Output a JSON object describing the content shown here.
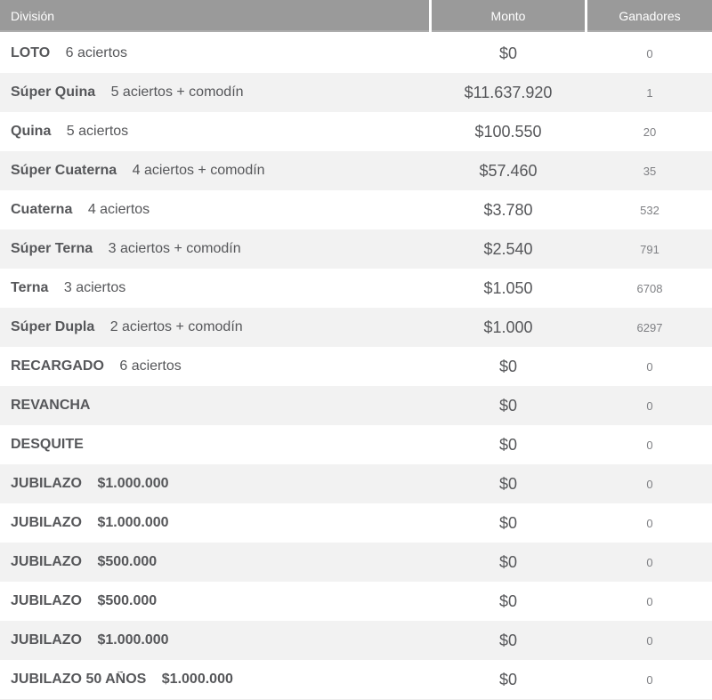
{
  "table": {
    "headers": {
      "division": "División",
      "monto": "Monto",
      "ganadores": "Ganadores"
    },
    "rows": [
      {
        "name": "LOTO",
        "detail": "6 aciertos",
        "detail_bold": false,
        "monto": "$0",
        "ganadores": "0"
      },
      {
        "name": "Súper Quina",
        "detail": "5 aciertos + comodín",
        "detail_bold": false,
        "monto": "$11.637.920",
        "ganadores": "1"
      },
      {
        "name": "Quina",
        "detail": "5 aciertos",
        "detail_bold": false,
        "monto": "$100.550",
        "ganadores": "20"
      },
      {
        "name": "Súper Cuaterna",
        "detail": "4 aciertos + comodín",
        "detail_bold": false,
        "monto": "$57.460",
        "ganadores": "35"
      },
      {
        "name": "Cuaterna",
        "detail": "4 aciertos",
        "detail_bold": false,
        "monto": "$3.780",
        "ganadores": "532"
      },
      {
        "name": "Súper Terna",
        "detail": "3 aciertos + comodín",
        "detail_bold": false,
        "monto": "$2.540",
        "ganadores": "791"
      },
      {
        "name": "Terna",
        "detail": "3 aciertos",
        "detail_bold": false,
        "monto": "$1.050",
        "ganadores": "6708"
      },
      {
        "name": "Súper Dupla",
        "detail": "2 aciertos + comodín",
        "detail_bold": false,
        "monto": "$1.000",
        "ganadores": "6297"
      },
      {
        "name": "RECARGADO",
        "detail": "6 aciertos",
        "detail_bold": false,
        "monto": "$0",
        "ganadores": "0"
      },
      {
        "name": "REVANCHA",
        "detail": "",
        "detail_bold": false,
        "monto": "$0",
        "ganadores": "0"
      },
      {
        "name": "DESQUITE",
        "detail": "",
        "detail_bold": false,
        "monto": "$0",
        "ganadores": "0"
      },
      {
        "name": "JUBILAZO",
        "detail": "$1.000.000",
        "detail_bold": true,
        "monto": "$0",
        "ganadores": "0"
      },
      {
        "name": "JUBILAZO",
        "detail": "$1.000.000",
        "detail_bold": true,
        "monto": "$0",
        "ganadores": "0"
      },
      {
        "name": "JUBILAZO",
        "detail": "$500.000",
        "detail_bold": true,
        "monto": "$0",
        "ganadores": "0"
      },
      {
        "name": "JUBILAZO",
        "detail": "$500.000",
        "detail_bold": true,
        "monto": "$0",
        "ganadores": "0"
      },
      {
        "name": "JUBILAZO",
        "detail": "$1.000.000",
        "detail_bold": true,
        "monto": "$0",
        "ganadores": "0"
      },
      {
        "name": "JUBILAZO 50 AÑOS",
        "detail": "$1.000.000",
        "detail_bold": true,
        "monto": "$0",
        "ganadores": "0"
      }
    ],
    "colors": {
      "header_bg": "#9a9a9a",
      "header_text": "#ffffff",
      "row_bg": "#ffffff",
      "row_alt_bg": "#f2f2f2",
      "division_text": "#56575a",
      "monto_text": "#56575a",
      "ganadores_text": "#7f8084"
    }
  }
}
